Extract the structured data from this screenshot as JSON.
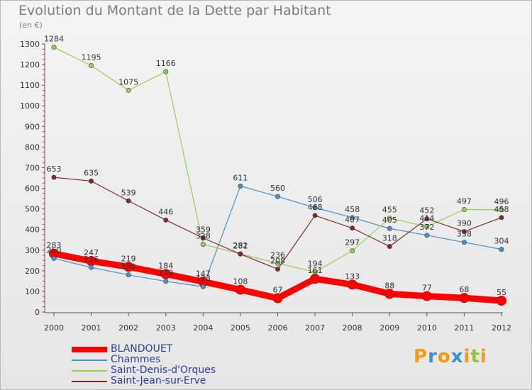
{
  "chart_data": {
    "type": "line",
    "title": "Evolution du Montant de la Dette par Habitant",
    "unit_label": "(en €)",
    "x": [
      "2000",
      "2001",
      "2002",
      "2003",
      "2004",
      "2005",
      "2006",
      "2007",
      "2008",
      "2009",
      "2010",
      "2011",
      "2012"
    ],
    "ylim": [
      0,
      1300
    ],
    "yticks": [
      0,
      100,
      200,
      300,
      400,
      500,
      600,
      700,
      800,
      900,
      1000,
      1100,
      1200,
      1300
    ],
    "grid": false,
    "legend_position": "bottom-left",
    "series": [
      {
        "name": "BLANDOUET",
        "color": "#ff0000",
        "values": [
          283,
          247,
          219,
          184,
          147,
          108,
          67,
          161,
          133,
          88,
          77,
          68,
          55
        ]
      },
      {
        "name": "Chammes",
        "color": "#4a90c8",
        "values": [
          260,
          216,
          180,
          149,
          123,
          611,
          560,
          506,
          458,
          405,
          372,
          338,
          304
        ]
      },
      {
        "name": "Saint-Denis-d'Orques",
        "color": "#9acd55",
        "values": [
          1284,
          1195,
          1075,
          1166,
          328,
          282,
          236,
          194,
          297,
          455,
          414,
          497,
          496
        ]
      },
      {
        "name": "Saint-Jean-sur-Erve",
        "color": "#7a2e2e",
        "values": [
          653,
          635,
          539,
          446,
          359,
          281,
          208,
          468,
          407,
          318,
          452,
          390,
          458
        ]
      }
    ]
  },
  "logo": {
    "text": "Proxiti",
    "letters": [
      "P",
      "r",
      "o",
      "x",
      "i",
      "t",
      "i"
    ],
    "letter_colors": [
      "#f39c12",
      "#3b8fd4",
      "#f39c12",
      "#3b8fd4",
      "#f39c12",
      "#8cc63f",
      "#f39c12"
    ]
  }
}
